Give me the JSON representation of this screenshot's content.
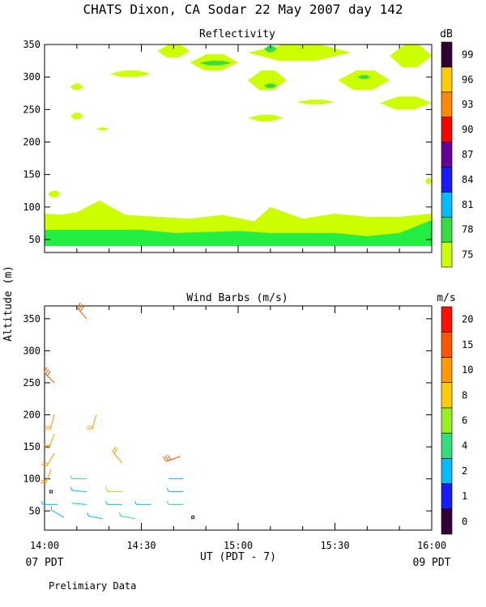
{
  "title": "CHATS Dixon, CA  Sodar  22 May 2007  day 142",
  "footer_note": "Prelimiary Data",
  "shared_ylabel": "Altitude (m)",
  "xaxis": {
    "label": "UT  (PDT - 7)",
    "ticks": [
      "14:00",
      "14:30",
      "15:00",
      "15:30",
      "16:00"
    ],
    "tick_values": [
      0,
      30,
      60,
      90,
      120
    ],
    "left_sub": "07 PDT",
    "right_sub": "09 PDT",
    "range_minutes": [
      0,
      120
    ]
  },
  "colors": {
    "light_green": "#ccff00",
    "mid_green": "#33dd44",
    "bright_green": "#22ee44",
    "reflectivity_scale": [
      "#ccff00",
      "#33dd44",
      "#00bbff",
      "#1a1aff",
      "#660099",
      "#ff0000",
      "#ff8800",
      "#ffcc00",
      "#330033"
    ],
    "wind_scale": [
      "#330033",
      "#1a1aff",
      "#00bbff",
      "#33dd77",
      "#99ee22",
      "#ffcc00",
      "#ff9900",
      "#ff5500",
      "#ff1100"
    ]
  },
  "chart_data": [
    {
      "type": "heatmap",
      "title": "Reflectivity",
      "xlabel": "UT  (PDT - 7)",
      "ylabel": "Altitude (m)",
      "ylim": [
        30,
        350
      ],
      "yticks": [
        50,
        100,
        150,
        200,
        250,
        300,
        350
      ],
      "colorbar": {
        "unit": "dB",
        "labels": [
          "75",
          "78",
          "81",
          "84",
          "87",
          "90",
          "93",
          "96",
          "99"
        ],
        "values": [
          75,
          78,
          81,
          84,
          87,
          90,
          93,
          96,
          99
        ]
      },
      "layers": [
        {
          "name": "lower band",
          "level_db": 75,
          "x": [
            0,
            5,
            10,
            17,
            25,
            35,
            45,
            55,
            65,
            70,
            80,
            90,
            100,
            110,
            120
          ],
          "top": [
            90,
            88,
            92,
            110,
            88,
            85,
            82,
            88,
            78,
            100,
            82,
            90,
            85,
            85,
            90
          ]
        },
        {
          "name": "surface band",
          "level_db": 78,
          "x": [
            0,
            30,
            40,
            60,
            70,
            90,
            100,
            110,
            120
          ],
          "top": [
            65,
            65,
            60,
            63,
            60,
            60,
            55,
            60,
            80
          ]
        },
        {
          "name": "patch A",
          "level_db": 75,
          "x_range": [
            1,
            5
          ],
          "y_range": [
            115,
            125
          ]
        },
        {
          "name": "patch B",
          "level_db": 75,
          "x_range": [
            8,
            12
          ],
          "y_range": [
            280,
            290
          ]
        },
        {
          "name": "patch C",
          "level_db": 75,
          "x_range": [
            8,
            12
          ],
          "y_range": [
            235,
            245
          ]
        },
        {
          "name": "patch D",
          "level_db": 75,
          "x_range": [
            16,
            20
          ],
          "y_range": [
            218,
            222
          ]
        },
        {
          "name": "patch E",
          "level_db": 75,
          "x_range": [
            20,
            33
          ],
          "y_range": [
            300,
            310
          ]
        },
        {
          "name": "patch F",
          "level_db": 75,
          "x_range": [
            35,
            45
          ],
          "y_range": [
            330,
            350
          ]
        },
        {
          "name": "patch G",
          "level_db": 75,
          "x_range": [
            45,
            60
          ],
          "y_range": [
            310,
            335
          ]
        },
        {
          "name": "patch H",
          "level_db": 75,
          "x_range": [
            63,
            75
          ],
          "y_range": [
            280,
            310
          ]
        },
        {
          "name": "patch I",
          "level_db": 75,
          "x_range": [
            63,
            74
          ],
          "y_range": [
            232,
            242
          ]
        },
        {
          "name": "patch J",
          "level_db": 75,
          "x_range": [
            63,
            95
          ],
          "y_range": [
            325,
            350
          ]
        },
        {
          "name": "patch K",
          "level_db": 75,
          "x_range": [
            78,
            90
          ],
          "y_range": [
            258,
            265
          ]
        },
        {
          "name": "patch L",
          "level_db": 75,
          "x_range": [
            91,
            107
          ],
          "y_range": [
            280,
            310
          ]
        },
        {
          "name": "patch M",
          "level_db": 75,
          "x_range": [
            104,
            120
          ],
          "y_range": [
            250,
            270
          ]
        },
        {
          "name": "patch N",
          "level_db": 75,
          "x_range": [
            107,
            120
          ],
          "y_range": [
            315,
            350
          ]
        },
        {
          "name": "patch O",
          "level_db": 75,
          "x_range": [
            118,
            120
          ],
          "y_range": [
            135,
            145
          ]
        },
        {
          "name": "core 1",
          "level_db": 78,
          "x_range": [
            48,
            58
          ],
          "y_range": [
            318,
            325
          ]
        },
        {
          "name": "core 2",
          "level_db": 78,
          "x_range": [
            68,
            72
          ],
          "y_range": [
            338,
            348
          ]
        },
        {
          "name": "core 3",
          "level_db": 78,
          "x_range": [
            68,
            72
          ],
          "y_range": [
            283,
            290
          ]
        },
        {
          "name": "core 4",
          "level_db": 78,
          "x_range": [
            97,
            101
          ],
          "y_range": [
            297,
            303
          ]
        }
      ]
    },
    {
      "type": "scatter",
      "title": "Wind Barbs (m/s)",
      "xlabel": "UT  (PDT - 7)",
      "ylabel": "Altitude (m)",
      "ylim": [
        20,
        370
      ],
      "yticks": [
        50,
        100,
        150,
        200,
        250,
        300,
        350
      ],
      "colorbar": {
        "unit": "m/s",
        "labels": [
          "0",
          "1",
          "2",
          "4",
          "6",
          "8",
          "10",
          "15",
          "20"
        ],
        "values": [
          0,
          1,
          2,
          4,
          6,
          8,
          10,
          15,
          20
        ]
      },
      "barbs": [
        {
          "t": 2,
          "z": 80,
          "speed": 0.5,
          "dir": 0
        },
        {
          "t": 4,
          "z": 60,
          "speed": 3,
          "dir": 270
        },
        {
          "t": 6,
          "z": 40,
          "speed": 3,
          "dir": 300
        },
        {
          "t": 2,
          "z": 115,
          "speed": 10,
          "dir": 200
        },
        {
          "t": 3,
          "z": 140,
          "speed": 10,
          "dir": 210
        },
        {
          "t": 3,
          "z": 170,
          "speed": 10,
          "dir": 200
        },
        {
          "t": 3,
          "z": 200,
          "speed": 10,
          "dir": 195
        },
        {
          "t": 3,
          "z": 250,
          "speed": 15,
          "dir": 315
        },
        {
          "t": 13,
          "z": 100,
          "speed": 4,
          "dir": 270
        },
        {
          "t": 13,
          "z": 80,
          "speed": 3,
          "dir": 275
        },
        {
          "t": 13,
          "z": 60,
          "speed": 2,
          "dir": 275
        },
        {
          "t": 16,
          "z": 200,
          "speed": 10,
          "dir": 195
        },
        {
          "t": 13,
          "z": 350,
          "speed": 15,
          "dir": 320
        },
        {
          "t": 18,
          "z": 38,
          "speed": 3,
          "dir": 280
        },
        {
          "t": 24,
          "z": 80,
          "speed": 6,
          "dir": 270
        },
        {
          "t": 24,
          "z": 60,
          "speed": 3,
          "dir": 270
        },
        {
          "t": 24,
          "z": 125,
          "speed": 10,
          "dir": 320
        },
        {
          "t": 28,
          "z": 38,
          "speed": 4,
          "dir": 280
        },
        {
          "t": 33,
          "z": 60,
          "speed": 3,
          "dir": 270
        },
        {
          "t": 42,
          "z": 135,
          "speed": 15,
          "dir": 250
        },
        {
          "t": 43,
          "z": 100,
          "speed": 2,
          "dir": 270
        },
        {
          "t": 43,
          "z": 80,
          "speed": 3,
          "dir": 270
        },
        {
          "t": 43,
          "z": 60,
          "speed": 4,
          "dir": 270
        },
        {
          "t": 46,
          "z": 40,
          "speed": 0.5,
          "dir": 0
        }
      ]
    }
  ]
}
